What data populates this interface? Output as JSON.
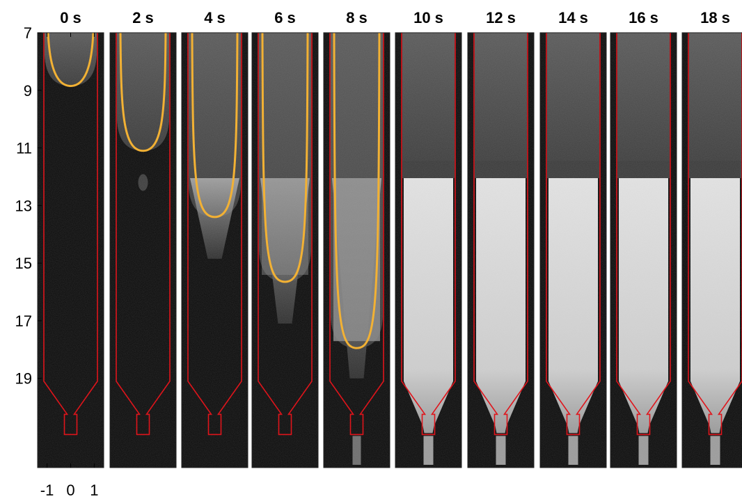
{
  "panels": [
    {
      "title": "0 s",
      "front_depth": 8.85
    },
    {
      "title": "2 s",
      "front_depth": 11.1
    },
    {
      "title": "4 s",
      "front_depth": 13.4
    },
    {
      "title": "6 s",
      "front_depth": 15.65
    },
    {
      "title": "8 s",
      "front_depth": 17.95
    },
    {
      "title": "10 s",
      "front_depth": null
    },
    {
      "title": "12 s",
      "front_depth": null
    },
    {
      "title": "14 s",
      "front_depth": null
    },
    {
      "title": "16 s",
      "front_depth": null
    },
    {
      "title": "18 s",
      "front_depth": null
    }
  ],
  "y_axis": {
    "ticks": [
      "7",
      "9",
      "11",
      "13",
      "15",
      "17",
      "19"
    ],
    "range": [
      7,
      22.1
    ]
  },
  "x_axis": {
    "ticks": [
      "-1",
      "0",
      "1"
    ],
    "range": [
      -1.4,
      1.4
    ]
  },
  "colors": {
    "background": "#ffffff",
    "image_dark": "#0b0b0b",
    "upper_gray": "#4b4b4b",
    "bright_fill": "#dcdcdc",
    "vessel_outline": "#e0141b",
    "front_curve": "#f2b134"
  }
}
